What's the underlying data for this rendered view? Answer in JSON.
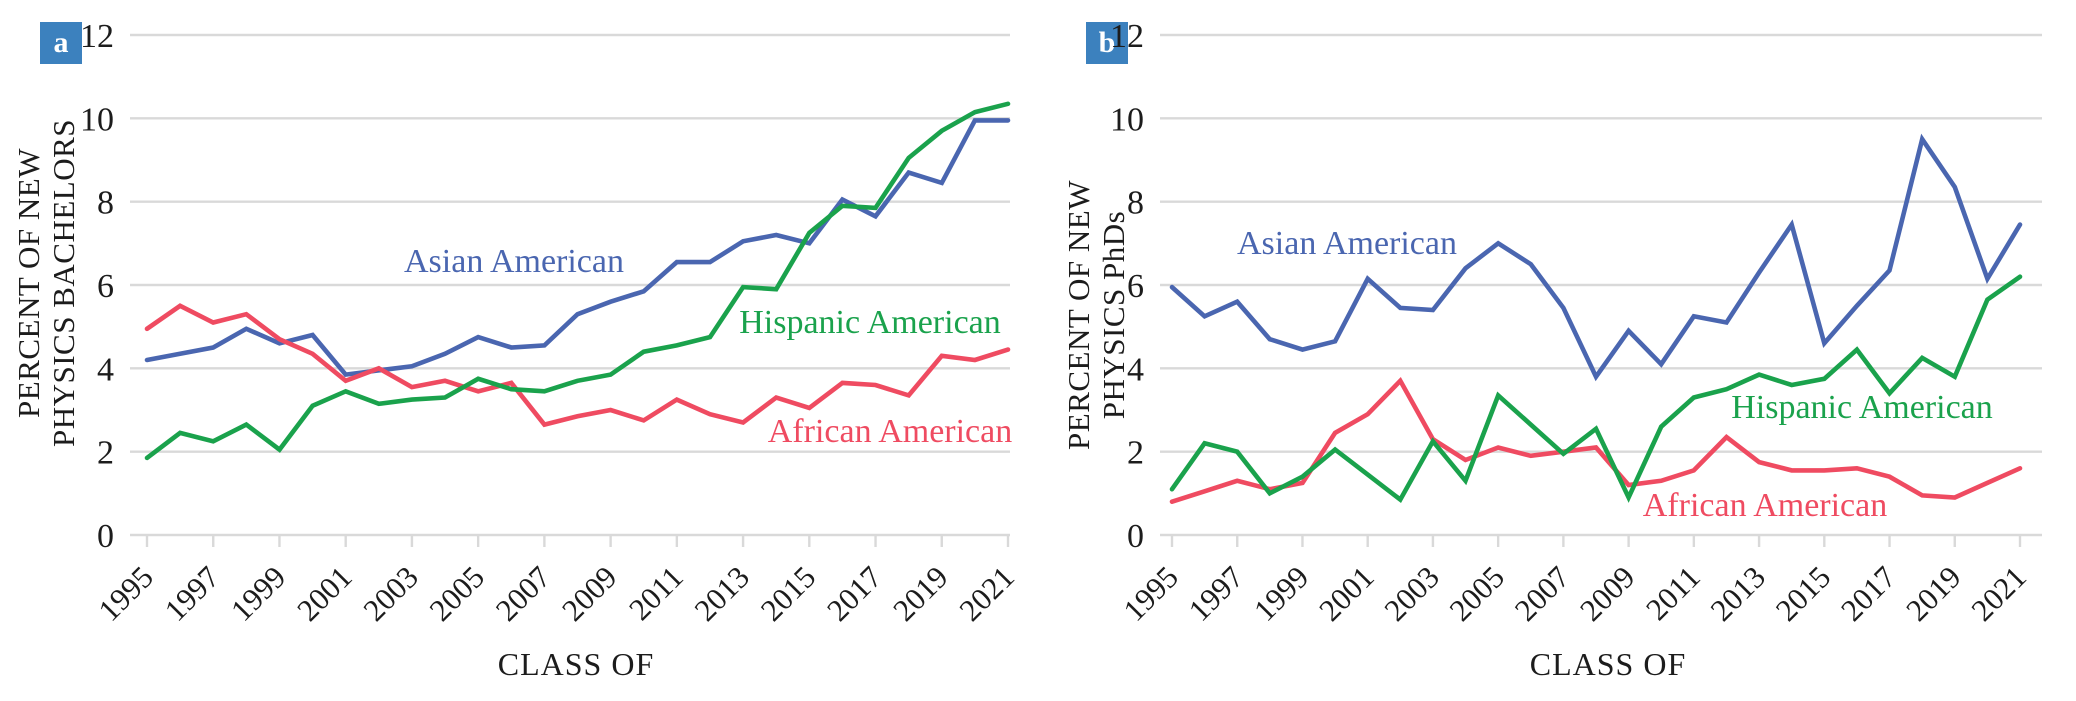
{
  "figure": {
    "background": "#ffffff",
    "text_color": "#1c1c1c",
    "grid_color": "#d9d9d9",
    "badge_color": "#3c81be",
    "series_colors": {
      "asian_american": "#4a66b0",
      "hispanic_american": "#1aa24c",
      "african_american": "#ef4b61"
    }
  },
  "chart_data": [
    {
      "type": "line",
      "panel_badge": "a",
      "title": "",
      "xlabel": "CLASS OF",
      "ylabel": "PERCENT OF NEW PHYSICS BACHELORS",
      "ylabel_lines": [
        "PERCENT OF NEW",
        "PHYSICS BACHELORS"
      ],
      "ylim": [
        0,
        12
      ],
      "yticks": [
        0,
        2,
        4,
        6,
        8,
        10,
        12
      ],
      "grid": true,
      "legend_position": "inline-labels",
      "x": [
        1995,
        1996,
        1997,
        1998,
        1999,
        2000,
        2001,
        2002,
        2003,
        2004,
        2005,
        2006,
        2007,
        2008,
        2009,
        2010,
        2011,
        2012,
        2013,
        2014,
        2015,
        2016,
        2017,
        2018,
        2019,
        2020,
        2021
      ],
      "xtick_labels": [
        "1995",
        "1997",
        "1999",
        "2001",
        "2003",
        "2005",
        "2007",
        "2009",
        "2011",
        "2013",
        "2015",
        "2017",
        "2019",
        "2021"
      ],
      "series": [
        {
          "name": "Asian American",
          "color": "#4a66b0",
          "values": [
            4.2,
            4.35,
            4.5,
            4.95,
            4.6,
            4.8,
            3.85,
            3.95,
            4.05,
            4.35,
            4.75,
            4.5,
            4.55,
            5.3,
            5.6,
            5.85,
            6.55,
            6.55,
            7.05,
            7.2,
            7.0,
            8.05,
            7.65,
            8.7,
            8.45,
            9.95,
            9.95
          ]
        },
        {
          "name": "Hispanic American",
          "color": "#1aa24c",
          "values": [
            1.85,
            2.45,
            2.25,
            2.65,
            2.05,
            3.1,
            3.45,
            3.15,
            3.25,
            3.3,
            3.75,
            3.5,
            3.45,
            3.7,
            3.85,
            4.4,
            4.55,
            4.75,
            5.95,
            5.9,
            7.25,
            7.9,
            7.85,
            9.05,
            9.7,
            10.15,
            10.35
          ]
        },
        {
          "name": "African American",
          "color": "#ef4b61",
          "values": [
            4.95,
            5.5,
            5.1,
            5.3,
            4.7,
            4.35,
            3.7,
            4.0,
            3.55,
            3.7,
            3.45,
            3.65,
            2.65,
            2.85,
            3.0,
            2.75,
            3.25,
            2.9,
            2.7,
            3.3,
            3.05,
            3.65,
            3.6,
            3.35,
            4.3,
            4.2,
            4.45
          ]
        }
      ]
    },
    {
      "type": "line",
      "panel_badge": "b",
      "title": "",
      "xlabel": "CLASS OF",
      "ylabel": "PERCENT OF NEW PHYSICS PhDs",
      "ylabel_lines": [
        "PERCENT OF NEW",
        "PHYSICS PhDs"
      ],
      "ylim": [
        0,
        12
      ],
      "yticks": [
        0,
        2,
        4,
        6,
        8,
        10,
        12
      ],
      "grid": true,
      "legend_position": "inline-labels",
      "x": [
        1995,
        1996,
        1997,
        1998,
        1999,
        2000,
        2001,
        2002,
        2003,
        2004,
        2005,
        2006,
        2007,
        2008,
        2009,
        2010,
        2011,
        2012,
        2013,
        2014,
        2015,
        2016,
        2017,
        2018,
        2019,
        2020,
        2021
      ],
      "xtick_labels": [
        "1995",
        "1997",
        "1999",
        "2001",
        "2003",
        "2005",
        "2007",
        "2009",
        "2011",
        "2013",
        "2015",
        "2017",
        "2019",
        "2021"
      ],
      "series": [
        {
          "name": "Asian American",
          "color": "#4a66b0",
          "values": [
            5.95,
            5.25,
            5.6,
            4.7,
            4.45,
            4.65,
            6.15,
            5.45,
            5.4,
            6.4,
            7.0,
            6.5,
            5.45,
            3.8,
            4.9,
            4.1,
            5.25,
            5.1,
            6.3,
            7.45,
            4.6,
            5.5,
            6.35,
            9.5,
            8.35,
            6.15,
            7.45
          ]
        },
        {
          "name": "Hispanic American",
          "color": "#1aa24c",
          "values": [
            1.1,
            2.2,
            2.0,
            1.0,
            1.4,
            2.05,
            1.45,
            0.85,
            2.25,
            1.3,
            3.35,
            2.65,
            1.95,
            2.55,
            0.9,
            2.6,
            3.3,
            3.5,
            3.85,
            3.6,
            3.75,
            4.45,
            3.4,
            4.25,
            3.8,
            5.65,
            6.2
          ]
        },
        {
          "name": "African American",
          "color": "#ef4b61",
          "values": [
            0.8,
            1.05,
            1.3,
            1.1,
            1.25,
            2.45,
            2.9,
            3.7,
            2.3,
            1.8,
            2.1,
            1.9,
            2.0,
            2.1,
            1.2,
            1.3,
            1.55,
            2.35,
            1.75,
            1.55,
            1.55,
            1.6,
            1.4,
            0.95,
            0.9,
            1.25,
            1.6
          ]
        }
      ]
    }
  ]
}
